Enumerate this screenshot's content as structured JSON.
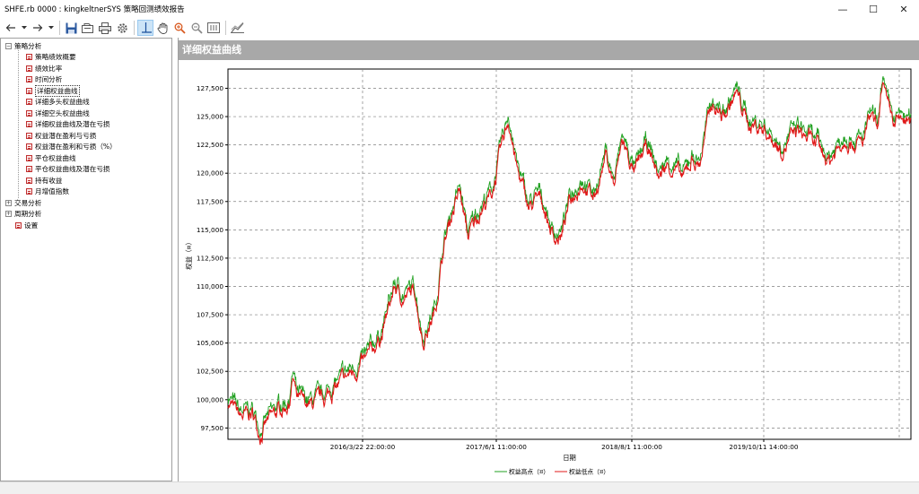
{
  "window": {
    "title": "SHFE.rb 0000 : kingkeltnerSYS 策略回测绩效报告",
    "minimize": "—",
    "maximize": "☐",
    "close": "✕"
  },
  "toolbar": {
    "buttons": [
      "back-icon",
      "dropdown-icon",
      "forward-icon",
      "dropdown-icon",
      "save-icon",
      "export-icon",
      "print-icon",
      "settings-icon",
      "crosshair-icon",
      "pan-hand-icon",
      "zoom-in-icon",
      "zoom-out-icon",
      "zoom-fit-icon",
      "chart-style-icon"
    ]
  },
  "tree": {
    "strategy_analysis": "策略分析",
    "strategy_items": [
      "策略绩效概要",
      "绩效比率",
      "时间分析",
      "详细权益曲线",
      "详细多头权益曲线",
      "详细空头权益曲线",
      "详细权益曲线及潜在亏损",
      "权益潜在盈利与亏损",
      "权益潜在盈利和亏损（%）",
      "平仓权益曲线",
      "平仓权益曲线及潜在亏损",
      "持有收益",
      "月增值指数"
    ],
    "selected_index": 3,
    "trade_analysis": "交易分析",
    "period_analysis": "周期分析",
    "settings": "设置"
  },
  "panel": {
    "title": "详细权益曲线"
  },
  "chart_data": {
    "type": "line",
    "title": "",
    "xlabel": "日期",
    "ylabel": "权益（¤）",
    "ylim": [
      96500,
      129200
    ],
    "yticks": [
      "97,500",
      "100,000",
      "102,500",
      "105,000",
      "107,500",
      "110,000",
      "112,500",
      "115,000",
      "117,500",
      "120,000",
      "122,500",
      "125,000",
      "127,500"
    ],
    "ytick_values": [
      97500,
      100000,
      102500,
      105000,
      107500,
      110000,
      112500,
      115000,
      117500,
      120000,
      122500,
      125000,
      127500
    ],
    "xticks": [
      "2016/3/22 22:00:00",
      "2017/6/1 11:00:00",
      "2018/8/1 11:00:00",
      "2019/10/11 14:00:00"
    ],
    "grid": true,
    "legend": [
      "权益高点（¤）",
      "权益低点（¤）"
    ],
    "legend_position": "bottom",
    "colors": {
      "high": "#20a020",
      "low": "#e01818",
      "grid": "#808080"
    },
    "series_profile": [
      [
        0,
        100000
      ],
      [
        1.5,
        98500
      ],
      [
        3,
        98800
      ],
      [
        4,
        97200
      ],
      [
        5,
        98200
      ],
      [
        6.5,
        99300
      ],
      [
        7.5,
        99800
      ],
      [
        8,
        102000
      ],
      [
        8.5,
        100000
      ],
      [
        10,
        99500
      ],
      [
        11.5,
        100000
      ],
      [
        13,
        101000
      ],
      [
        15,
        102300
      ],
      [
        17,
        103500
      ],
      [
        19,
        106000
      ],
      [
        20.5,
        110000
      ],
      [
        21.5,
        109000
      ],
      [
        23,
        109700
      ],
      [
        24,
        105300
      ],
      [
        25.5,
        108000
      ],
      [
        26.5,
        113500
      ],
      [
        27.5,
        116500
      ],
      [
        28.5,
        118500
      ],
      [
        29.5,
        114500
      ],
      [
        31,
        116800
      ],
      [
        32.5,
        118300
      ],
      [
        33.5,
        121800
      ],
      [
        34.5,
        125000
      ],
      [
        35.5,
        120600
      ],
      [
        37,
        117000
      ],
      [
        38.5,
        118000
      ],
      [
        40,
        114500
      ],
      [
        41,
        114500
      ],
      [
        42,
        117500
      ],
      [
        43.5,
        119500
      ],
      [
        45,
        117800
      ],
      [
        46.5,
        121800
      ],
      [
        47.5,
        119000
      ],
      [
        48.5,
        123000
      ],
      [
        50,
        120000
      ],
      [
        51.5,
        122500
      ],
      [
        53,
        119800
      ],
      [
        54,
        120800
      ],
      [
        55,
        120500
      ],
      [
        56,
        119500
      ],
      [
        57,
        121300
      ],
      [
        58,
        120900
      ],
      [
        59.5,
        126300
      ],
      [
        61,
        125000
      ],
      [
        62.5,
        127200
      ],
      [
        64,
        124500
      ],
      [
        66,
        124000
      ],
      [
        68,
        122200
      ],
      [
        70,
        123800
      ],
      [
        72,
        122800
      ],
      [
        74,
        121200
      ],
      [
        76,
        123400
      ],
      [
        78,
        122500
      ],
      [
        79,
        125000
      ],
      [
        80,
        123700
      ],
      [
        80.5,
        128600
      ],
      [
        81,
        126000
      ],
      [
        82,
        124400
      ],
      [
        83,
        124900
      ],
      [
        84,
        124200
      ]
    ]
  }
}
